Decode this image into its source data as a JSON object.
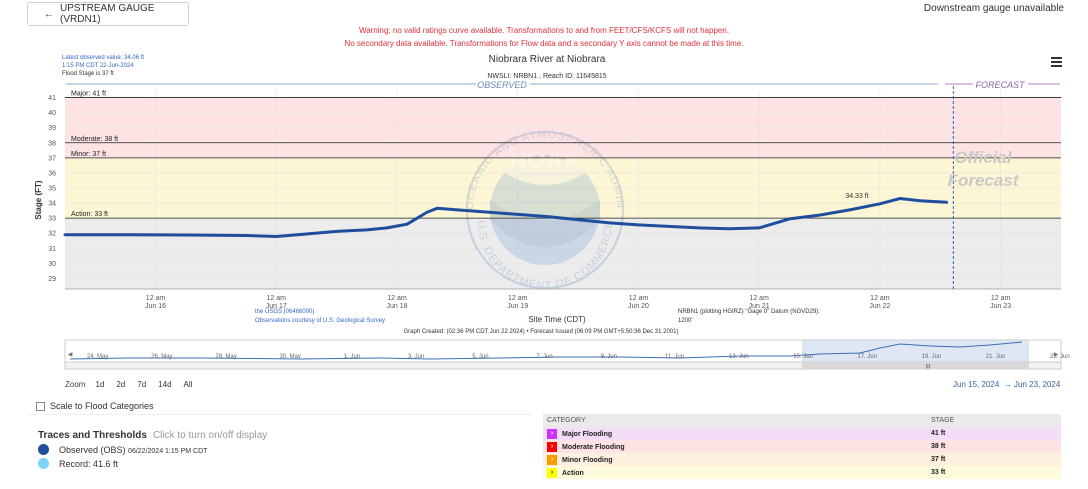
{
  "header": {
    "upstream_button": "UPSTREAM GAUGE (VRDN1)",
    "downstream_text": "Downstream gauge unavailable",
    "warning_line1": "Warning: no valid ratings curve available. Transformations to and from FEET/CFS/KCFS will not happen.",
    "warning_line2": "No secondary data available. Transformations for Flow data and a secondary Y axis cannot be made at this time."
  },
  "chart_meta": {
    "latest_line1": "Latest observed value: 34.06 ft",
    "latest_line2": "1:15 PM CDT 22-Jun-2024",
    "latest_line3": "Flood Stage is 37 ft",
    "observed_label": "OBSERVED",
    "forecast_label": "FORECAST",
    "official_forecast_1": "Official",
    "official_forecast_2": "Forecast",
    "peak_label": "34.33 ft",
    "usgs_line1": "the USGS (06466000)",
    "usgs_line2": "Observations courtesy of U.S. Geological Survey",
    "datum_line1": "NRBN1 (plotting HGIRZ) \"Gage 0\" Datum (NGVD29):",
    "datum_line2": "1200'",
    "graph_created": "Graph Created: (02:36 PM CDT Jun 22 2024) • Forecast Issued (06:09 PM GMT+5:50:36 Dec 31 2001)",
    "noaa_text": "NOAA",
    "noaa_ring_top": "NATIONAL OCEANIC AND ATMOSPHERIC ADMINISTRATION",
    "noaa_ring_bottom": "U.S. DEPARTMENT OF COMMERCE"
  },
  "navigator": {
    "labels": [
      "24. May",
      "26. May",
      "28. May",
      "30. May",
      "1. Jun",
      "3. Jun",
      "5. Jun",
      "7. Jun",
      "9. Jun",
      "11. Jun",
      "13. Jun",
      "15. Jun",
      "17. Jun",
      "19. Jun",
      "21. Jun",
      "23. Jun"
    ],
    "handle_glyph": "III",
    "left_arrow": "◀",
    "right_arrow": "▶"
  },
  "controls": {
    "zoom_label": "Zoom",
    "zoom_options": [
      "1d",
      "2d",
      "7d",
      "14d",
      "All"
    ],
    "range_from": "Jun 15, 2024",
    "range_sep": "→",
    "range_to": "Jun 23, 2024",
    "scale_label": "Scale to Flood Categories"
  },
  "traces": {
    "title": "Traces and Thresholds",
    "hint": "Click to turn on/off display",
    "observed_label": "Observed (OBS)",
    "observed_time": "06/22/2024 1:15 PM CDT",
    "record_label": "Record: 41.6 ft",
    "observed_color": "#1f4e9c",
    "record_color": "#7fd3f7"
  },
  "categories": {
    "header_category": "CATEGORY",
    "header_stage": "STAGE",
    "rows": [
      {
        "name": "Major Flooding",
        "stage": "41 ft",
        "color": "#cc33ff",
        "bg": "#f3ddf7"
      },
      {
        "name": "Moderate Flooding",
        "stage": "38 ft",
        "color": "#ff0000",
        "bg": "#fde3e3"
      },
      {
        "name": "Minor Flooding",
        "stage": "37 ft",
        "color": "#ff9900",
        "bg": "#fdf0de"
      },
      {
        "name": "Action",
        "stage": "33 ft",
        "color": "#ffff00",
        "bg": "#fdfbdc"
      }
    ]
  },
  "chart_data": {
    "type": "line",
    "title": "Niobrara River at Niobrara",
    "subtitle": "NWSLI: NRBN1 , Reach ID: 11645815",
    "xlabel": "Site Time (CDT)",
    "ylabel": "Stage (FT)",
    "ylim": [
      28.3,
      41.5
    ],
    "yticks": [
      29,
      30,
      31,
      32,
      33,
      34,
      35,
      36,
      37,
      38,
      39,
      40,
      41
    ],
    "xlim": [
      "2024-06-15T06:00",
      "2024-06-23T12:00"
    ],
    "xticks": [
      {
        "t": "2024-06-16T00:00",
        "l1": "12 am",
        "l2": "Jun 16"
      },
      {
        "t": "2024-06-17T00:00",
        "l1": "12 am",
        "l2": "Jun 17"
      },
      {
        "t": "2024-06-18T00:00",
        "l1": "12 am",
        "l2": "Jun 18"
      },
      {
        "t": "2024-06-19T00:00",
        "l1": "12 am",
        "l2": "Jun 19"
      },
      {
        "t": "2024-06-20T00:00",
        "l1": "12 am",
        "l2": "Jun 20"
      },
      {
        "t": "2024-06-21T00:00",
        "l1": "12 am",
        "l2": "Jun 21"
      },
      {
        "t": "2024-06-22T00:00",
        "l1": "12 am",
        "l2": "Jun 22"
      },
      {
        "t": "2024-06-23T00:00",
        "l1": "12 am",
        "l2": "Jun 23"
      }
    ],
    "now": "2024-06-22T14:36",
    "thresholds": [
      {
        "name": "Major",
        "label": "Major: 41 ft",
        "value": 41,
        "color": "#fde3e3"
      },
      {
        "name": "Moderate",
        "label": "Moderate: 38 ft",
        "value": 38,
        "color": "#fde3e3"
      },
      {
        "name": "Minor",
        "label": "Minor: 37 ft",
        "value": 37,
        "color": "#fdf6d4"
      },
      {
        "name": "Action",
        "label": "Action: 33 ft",
        "value": 33,
        "color": "#fbfbe0"
      }
    ],
    "series": [
      {
        "name": "Observed (OBS)",
        "x": [
          "2024-06-15T06:00",
          "2024-06-15T18:00",
          "2024-06-16T06:00",
          "2024-06-16T18:00",
          "2024-06-17T00:00",
          "2024-06-17T06:00",
          "2024-06-17T12:00",
          "2024-06-17T18:00",
          "2024-06-17T22:00",
          "2024-06-18T02:00",
          "2024-06-18T06:00",
          "2024-06-18T08:00",
          "2024-06-18T12:00",
          "2024-06-18T18:00",
          "2024-06-19T00:00",
          "2024-06-19T06:00",
          "2024-06-19T12:00",
          "2024-06-19T18:00",
          "2024-06-20T00:00",
          "2024-06-20T06:00",
          "2024-06-20T12:00",
          "2024-06-20T18:00",
          "2024-06-21T00:00",
          "2024-06-21T06:00",
          "2024-06-21T12:00",
          "2024-06-21T18:00",
          "2024-06-22T00:00",
          "2024-06-22T04:00",
          "2024-06-22T08:00",
          "2024-06-22T13:15"
        ],
        "y": [
          31.9,
          31.9,
          31.88,
          31.85,
          31.78,
          31.95,
          32.12,
          32.22,
          32.35,
          32.6,
          33.4,
          33.65,
          33.55,
          33.4,
          33.25,
          33.1,
          32.9,
          32.7,
          32.55,
          32.45,
          32.35,
          32.3,
          32.35,
          32.95,
          33.2,
          33.55,
          33.95,
          34.3,
          34.15,
          34.06
        ]
      }
    ]
  }
}
